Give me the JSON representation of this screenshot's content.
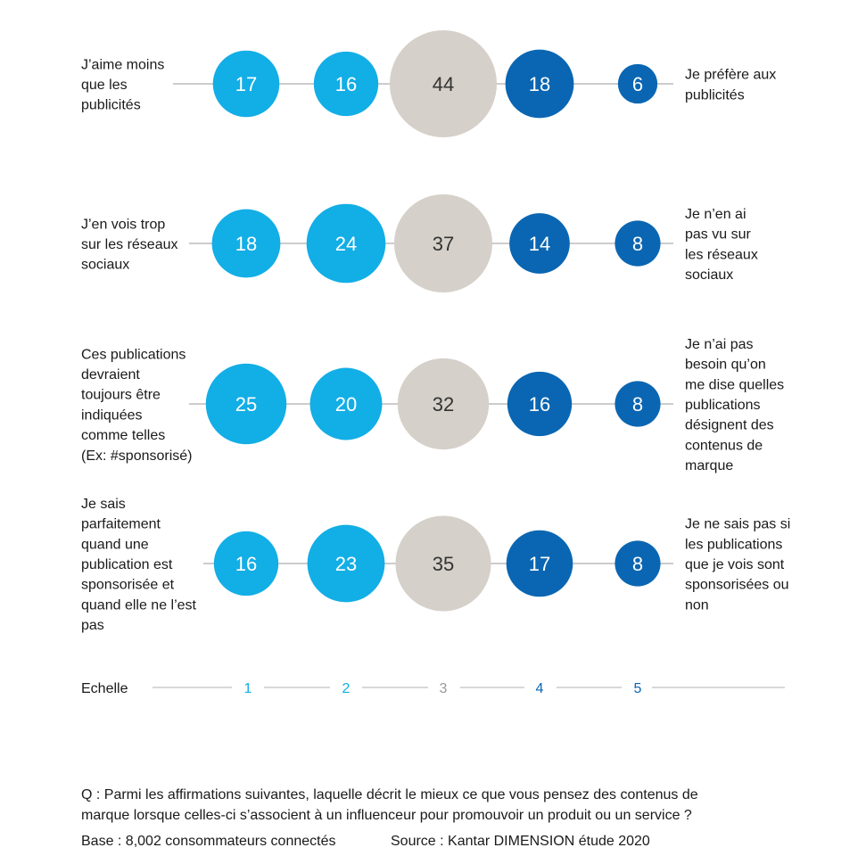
{
  "chart_data": {
    "type": "bubble",
    "title": "",
    "scale_label": "Echelle",
    "scale": [
      1,
      2,
      3,
      4,
      5
    ],
    "colors": [
      "#12aee6",
      "#12aee6",
      "#d5d0c9",
      "#0a66b2",
      "#0a66b2"
    ],
    "scale_colors": [
      "#12aee6",
      "#12aee6",
      "#9a9a9a",
      "#0a66b2",
      "#0a66b2"
    ],
    "rows": [
      {
        "left_label": [
          "J’aime moins",
          "que les",
          "publicités"
        ],
        "right_label": [
          "Je préfère aux",
          "publicités"
        ],
        "values": [
          17,
          16,
          44,
          18,
          6
        ]
      },
      {
        "left_label": [
          "J’en vois trop",
          "sur les réseaux",
          "sociaux"
        ],
        "right_label": [
          "Je n’en ai",
          "pas vu sur",
          "les réseaux",
          "sociaux"
        ],
        "values": [
          18,
          24,
          37,
          14,
          8
        ]
      },
      {
        "left_label": [
          "Ces publications",
          "devraient",
          "toujours être",
          "indiquées",
          "comme telles",
          "(Ex: #sponsorisé)"
        ],
        "right_label": [
          "Je n’ai pas",
          "besoin qu’on",
          "me dise quelles",
          "publications",
          "désignent des",
          "contenus de",
          "marque"
        ],
        "values": [
          25,
          20,
          32,
          16,
          8
        ]
      },
      {
        "left_label": [
          "Je sais",
          "parfaitement",
          "quand une",
          "publication est",
          "sponsorisée et",
          "quand elle ne l’est",
          "pas"
        ],
        "right_label": [
          "Je ne sais pas si",
          "les publications",
          "que je vois sont",
          "sponsorisées ou",
          "non"
        ],
        "values": [
          16,
          23,
          35,
          17,
          8
        ]
      }
    ]
  },
  "footer": {
    "question_line1": "Q : Parmi les affirmations suivantes, laquelle décrit le mieux ce que vous pensez des contenus de",
    "question_line2": "marque lorsque celles-ci s’associent à un influenceur pour promouvoir un produit ou un service ?",
    "base": "Base : 8,002 consommateurs connectés",
    "source": "Source : Kantar DIMENSION étude 2020"
  }
}
